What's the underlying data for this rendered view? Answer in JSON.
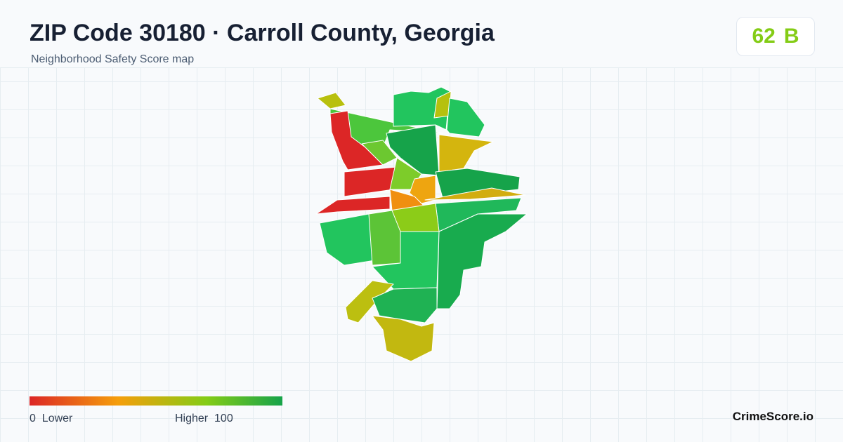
{
  "header": {
    "title": "ZIP Code 30180 · Carroll County, Georgia",
    "subtitle": "Neighborhood Safety Score map"
  },
  "score": {
    "value": 62,
    "grade": "B"
  },
  "legend": {
    "min": 0,
    "min_label": "Lower",
    "max_label": "Higher",
    "max": 100
  },
  "brand": "CrimeScore.io"
}
